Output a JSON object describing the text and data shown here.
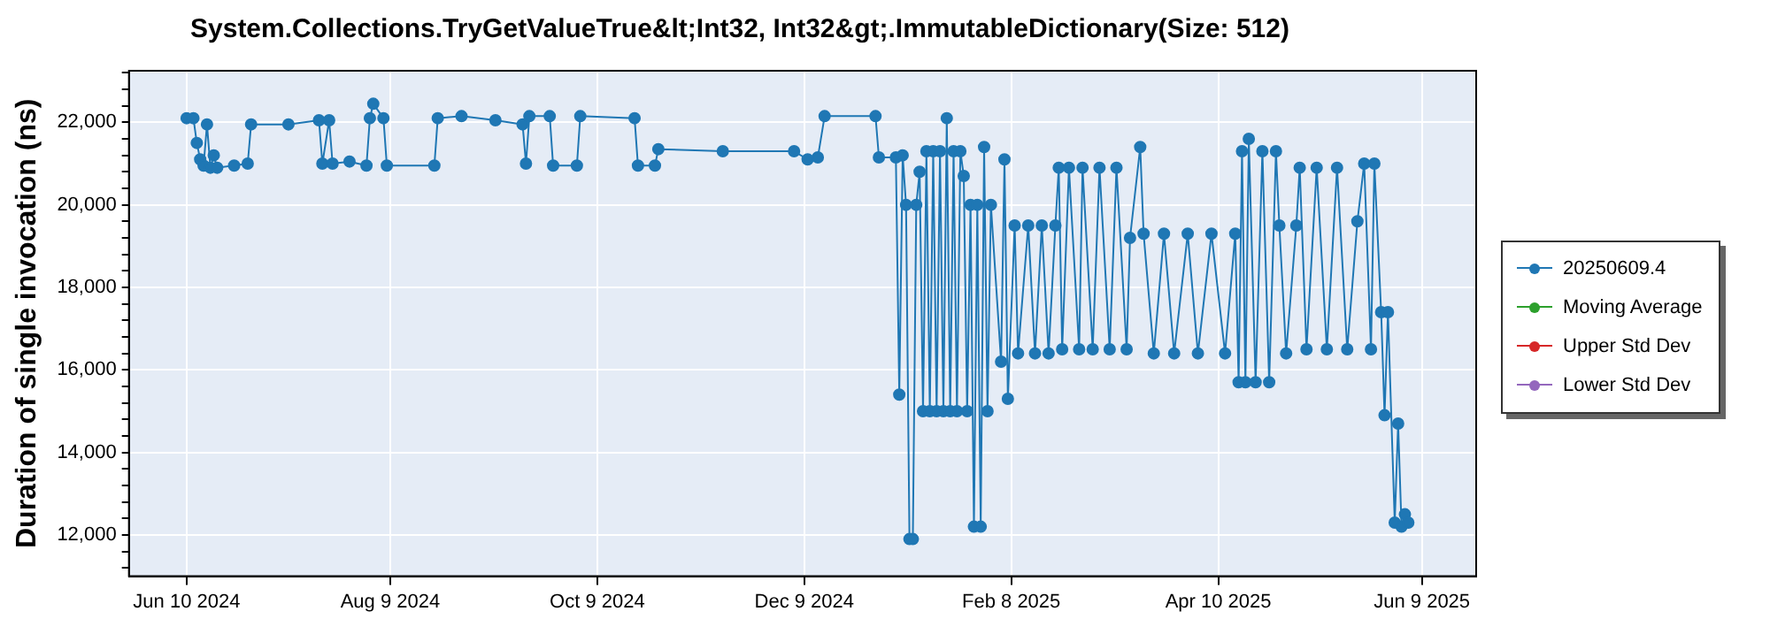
{
  "chart_data": {
    "type": "line",
    "title": "System.Collections.TryGetValueTrue&lt;Int32, Int32&gt;.ImmutableDictionary(Size: 512)",
    "ylabel": "Duration of single invocation (ns)",
    "series": [
      {
        "name": "20250609.4",
        "color": "#1f77b4",
        "x": [
          "2024-06-10",
          "2024-06-12",
          "2024-06-13",
          "2024-06-14",
          "2024-06-15",
          "2024-06-16",
          "2024-06-17",
          "2024-06-18",
          "2024-06-19",
          "2024-06-24",
          "2024-06-28",
          "2024-06-29",
          "2024-07-10",
          "2024-07-19",
          "2024-07-20",
          "2024-07-22",
          "2024-07-23",
          "2024-07-28",
          "2024-08-02",
          "2024-08-03",
          "2024-08-04",
          "2024-08-07",
          "2024-08-08",
          "2024-08-22",
          "2024-08-23",
          "2024-08-30",
          "2024-09-09",
          "2024-09-17",
          "2024-09-18",
          "2024-09-19",
          "2024-09-25",
          "2024-09-26",
          "2024-10-03",
          "2024-10-04",
          "2024-10-20",
          "2024-10-21",
          "2024-10-26",
          "2024-10-27",
          "2024-11-15",
          "2024-12-06",
          "2024-12-10",
          "2024-12-13",
          "2024-12-15",
          "2024-12-30",
          "2024-12-31",
          "2025-01-05",
          "2025-01-06",
          "2025-01-07",
          "2025-01-08",
          "2025-01-09",
          "2025-01-10",
          "2025-01-11",
          "2025-01-12",
          "2025-01-13",
          "2025-01-14",
          "2025-01-15",
          "2025-01-16",
          "2025-01-17",
          "2025-01-18",
          "2025-01-19",
          "2025-01-20",
          "2025-01-21",
          "2025-01-22",
          "2025-01-23",
          "2025-01-24",
          "2025-01-25",
          "2025-01-26",
          "2025-01-27",
          "2025-01-28",
          "2025-01-29",
          "2025-01-30",
          "2025-01-31",
          "2025-02-01",
          "2025-02-02",
          "2025-02-05",
          "2025-02-06",
          "2025-02-07",
          "2025-02-09",
          "2025-02-10",
          "2025-02-13",
          "2025-02-15",
          "2025-02-17",
          "2025-02-19",
          "2025-02-21",
          "2025-02-22",
          "2025-02-23",
          "2025-02-25",
          "2025-02-28",
          "2025-03-01",
          "2025-03-04",
          "2025-03-06",
          "2025-03-09",
          "2025-03-11",
          "2025-03-14",
          "2025-03-15",
          "2025-03-18",
          "2025-03-19",
          "2025-03-22",
          "2025-03-25",
          "2025-03-28",
          "2025-04-01",
          "2025-04-04",
          "2025-04-08",
          "2025-04-12",
          "2025-04-15",
          "2025-04-16",
          "2025-04-17",
          "2025-04-18",
          "2025-04-19",
          "2025-04-21",
          "2025-04-23",
          "2025-04-25",
          "2025-04-27",
          "2025-04-28",
          "2025-04-30",
          "2025-05-03",
          "2025-05-04",
          "2025-05-06",
          "2025-05-09",
          "2025-05-12",
          "2025-05-15",
          "2025-05-18",
          "2025-05-21",
          "2025-05-23",
          "2025-05-25",
          "2025-05-26",
          "2025-05-28",
          "2025-05-29",
          "2025-05-30",
          "2025-06-01",
          "2025-06-02",
          "2025-06-03",
          "2025-06-04",
          "2025-06-05"
        ],
        "values": [
          22100,
          22100,
          21500,
          21100,
          20950,
          21950,
          20900,
          21200,
          20900,
          20950,
          21000,
          21950,
          21950,
          22050,
          21000,
          22050,
          21000,
          21050,
          20950,
          22100,
          22450,
          22100,
          20950,
          20950,
          22100,
          22150,
          22050,
          21950,
          21000,
          22150,
          22150,
          20950,
          20950,
          22150,
          22100,
          20950,
          20950,
          21350,
          21300,
          21300,
          21100,
          21150,
          22150,
          22150,
          21150,
          21150,
          15400,
          21200,
          20000,
          11900,
          11900,
          20000,
          20800,
          15000,
          21300,
          15000,
          21300,
          15000,
          21300,
          15000,
          22100,
          15000,
          21300,
          15000,
          21300,
          20700,
          15000,
          20000,
          12200,
          20000,
          12200,
          21400,
          15000,
          20000,
          16200,
          21100,
          15300,
          19500,
          16400,
          19500,
          16400,
          19500,
          16400,
          19500,
          20900,
          16500,
          20900,
          16500,
          20900,
          16500,
          20900,
          16500,
          20900,
          16500,
          19200,
          21400,
          19300,
          16400,
          19300,
          16400,
          19300,
          16400,
          19300,
          16400,
          19300,
          15700,
          21300,
          15700,
          21600,
          15700,
          21300,
          15700,
          21300,
          19500,
          16400,
          19500,
          20900,
          16500,
          20900,
          16500,
          20900,
          16500,
          19600,
          21000,
          16500,
          21000,
          17400,
          14900,
          17400,
          12300,
          14700,
          12200,
          12500,
          12300
        ]
      },
      {
        "name": "Moving Average",
        "color": "#2ca02c"
      },
      {
        "name": "Upper Std Dev",
        "color": "#d62728"
      },
      {
        "name": "Lower Std Dev",
        "color": "#9467bd"
      }
    ],
    "xlim": [
      "2024-05-24",
      "2025-06-25"
    ],
    "xticks": [
      {
        "value": "2024-06-10",
        "label": "Jun 10 2024"
      },
      {
        "value": "2024-08-09",
        "label": "Aug 9 2024"
      },
      {
        "value": "2024-10-09",
        "label": "Oct 9 2024"
      },
      {
        "value": "2024-12-09",
        "label": "Dec 9 2024"
      },
      {
        "value": "2025-02-08",
        "label": "Feb 8 2025"
      },
      {
        "value": "2025-04-10",
        "label": "Apr 10 2025"
      },
      {
        "value": "2025-06-09",
        "label": "Jun 9 2025"
      }
    ],
    "ylim": [
      11000,
      23250
    ],
    "yticks": [
      {
        "value": 11200,
        "label": null
      },
      {
        "value": 11600,
        "label": null
      },
      {
        "value": 12000,
        "label": "12,000"
      },
      {
        "value": 12400,
        "label": null
      },
      {
        "value": 12800,
        "label": null
      },
      {
        "value": 13200,
        "label": null
      },
      {
        "value": 13600,
        "label": null
      },
      {
        "value": 14000,
        "label": "14,000"
      },
      {
        "value": 14400,
        "label": null
      },
      {
        "value": 14800,
        "label": null
      },
      {
        "value": 15200,
        "label": null
      },
      {
        "value": 15600,
        "label": null
      },
      {
        "value": 16000,
        "label": "16,000"
      },
      {
        "value": 16400,
        "label": null
      },
      {
        "value": 16800,
        "label": null
      },
      {
        "value": 17200,
        "label": null
      },
      {
        "value": 17600,
        "label": null
      },
      {
        "value": 18000,
        "label": "18,000"
      },
      {
        "value": 18400,
        "label": null
      },
      {
        "value": 18800,
        "label": null
      },
      {
        "value": 19200,
        "label": null
      },
      {
        "value": 19600,
        "label": null
      },
      {
        "value": 20000,
        "label": "20,000"
      },
      {
        "value": 20400,
        "label": null
      },
      {
        "value": 20800,
        "label": null
      },
      {
        "value": 21200,
        "label": null
      },
      {
        "value": 21600,
        "label": null
      },
      {
        "value": 22000,
        "label": "22,000"
      },
      {
        "value": 22400,
        "label": null
      },
      {
        "value": 22800,
        "label": null
      },
      {
        "value": 23200,
        "label": null
      }
    ],
    "grid": true,
    "legend": "right",
    "marker": "circle",
    "line_style": "solid"
  }
}
